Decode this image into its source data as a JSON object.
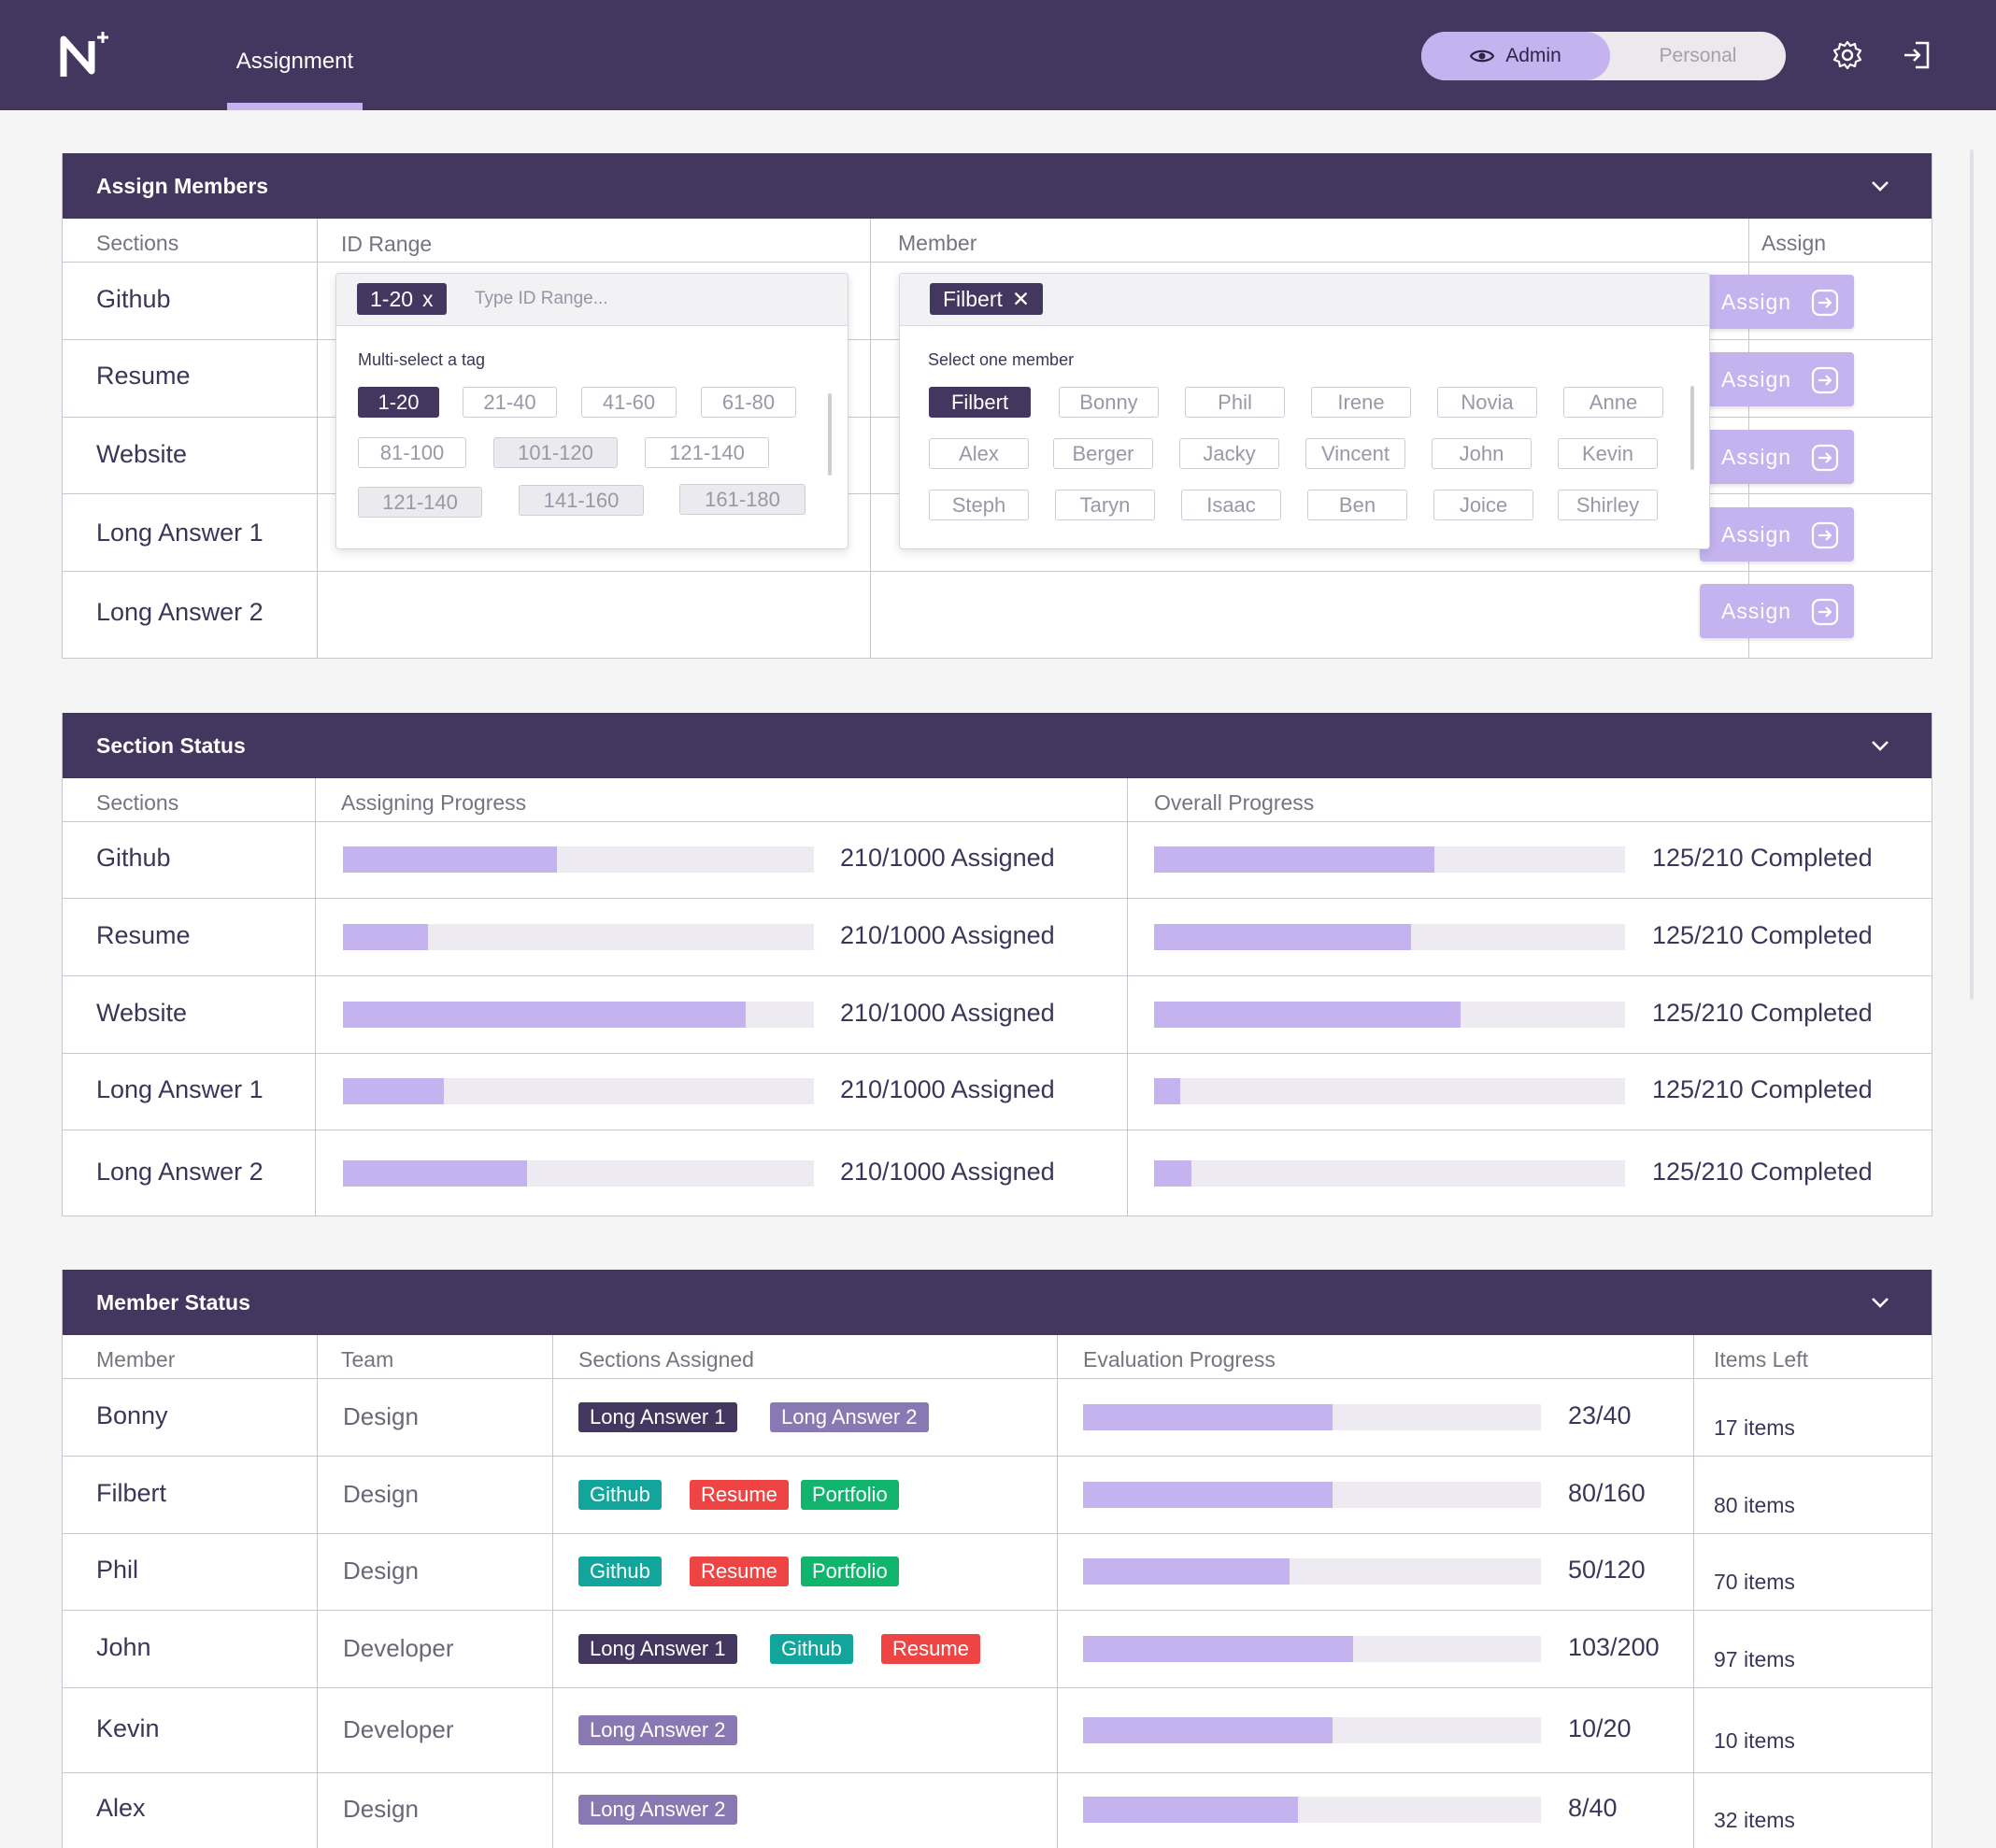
{
  "nav": {
    "tab_label": "Assignment"
  },
  "mode": {
    "admin_label": "Admin",
    "personal_label": "Personal"
  },
  "colors": {
    "brand": "#43365f",
    "accent": "#c4b3ef",
    "github": "#11a59c",
    "resume": "#ef4444",
    "portfolio": "#11b46c",
    "long_answer_1": "#43365f",
    "long_answer_2": "#8a78b2"
  },
  "assign_members": {
    "title": "Assign Members",
    "headers": {
      "sections": "Sections",
      "id_range": "ID Range",
      "member": "Member",
      "assign": "Assign"
    },
    "rows": [
      "Github",
      "Resume",
      "Website",
      "Long Answer 1",
      "Long Answer 2"
    ],
    "assign_label": "Assign",
    "id_dropdown": {
      "selected": "1-20",
      "remove_glyph": "x",
      "placeholder": "Type ID Range...",
      "title": "Multi-select a tag",
      "tags": [
        "1-20",
        "21-40",
        "41-60",
        "61-80",
        "81-100",
        "101-120",
        "121-140",
        "121-140",
        "141-160",
        "161-180"
      ]
    },
    "member_dropdown": {
      "selected": "Filbert",
      "remove_glyph": "✕",
      "title": "Select one member",
      "members": [
        "Filbert",
        "Bonny",
        "Phil",
        "Irene",
        "Novia",
        "Anne",
        "Alex",
        "Berger",
        "Jacky",
        "Vincent",
        "John",
        "Kevin",
        "Steph",
        "Taryn",
        "Isaac",
        "Ben",
        "Joice",
        "Shirley"
      ]
    }
  },
  "section_status": {
    "title": "Section Status",
    "headers": {
      "sections": "Sections",
      "assigning": "Assigning Progress",
      "overall": "Overall Progress"
    },
    "rows": [
      {
        "name": "Github",
        "assigned_text": "210/1000 Assigned",
        "assigned_pct": 0.455,
        "completed_text": "125/210 Completed",
        "completed_pct": 0.595
      },
      {
        "name": "Resume",
        "assigned_text": "210/1000 Assigned",
        "assigned_pct": 0.18,
        "completed_text": "125/210 Completed",
        "completed_pct": 0.545
      },
      {
        "name": "Website",
        "assigned_text": "210/1000 Assigned",
        "assigned_pct": 0.855,
        "completed_text": "125/210 Completed",
        "completed_pct": 0.65
      },
      {
        "name": "Long Answer 1",
        "assigned_text": "210/1000 Assigned",
        "assigned_pct": 0.215,
        "completed_text": "125/210 Completed",
        "completed_pct": 0.055
      },
      {
        "name": "Long Answer 2",
        "assigned_text": "210/1000 Assigned",
        "assigned_pct": 0.39,
        "completed_text": "125/210 Completed",
        "completed_pct": 0.08
      }
    ]
  },
  "member_status": {
    "title": "Member Status",
    "headers": {
      "member": "Member",
      "team": "Team",
      "sections_assigned": "Sections Assigned",
      "evaluation": "Evaluation Progress",
      "items_left": "Items Left"
    },
    "rows": [
      {
        "name": "Bonny",
        "team": "Design",
        "sections": [
          "Long Answer 1",
          "Long Answer 2"
        ],
        "progress_text": "23/40",
        "progress_pct": 0.545,
        "items_left": "17 items"
      },
      {
        "name": "Filbert",
        "team": "Design",
        "sections": [
          "Github",
          "Resume",
          "Portfolio"
        ],
        "progress_text": "80/160",
        "progress_pct": 0.545,
        "items_left": "80 items"
      },
      {
        "name": "Phil",
        "team": "Design",
        "sections": [
          "Github",
          "Resume",
          "Portfolio"
        ],
        "progress_text": "50/120",
        "progress_pct": 0.45,
        "items_left": "70 items"
      },
      {
        "name": "John",
        "team": "Developer",
        "sections": [
          "Long Answer 1",
          "Github",
          "Resume"
        ],
        "progress_text": "103/200",
        "progress_pct": 0.59,
        "items_left": "97 items"
      },
      {
        "name": "Kevin",
        "team": "Developer",
        "sections": [
          "Long Answer 2"
        ],
        "progress_text": "10/20",
        "progress_pct": 0.545,
        "items_left": "10 items"
      },
      {
        "name": "Alex",
        "team": "Design",
        "sections": [
          "Long Answer 2"
        ],
        "progress_text": "8/40",
        "progress_pct": 0.47,
        "items_left": "32 items"
      }
    ]
  }
}
